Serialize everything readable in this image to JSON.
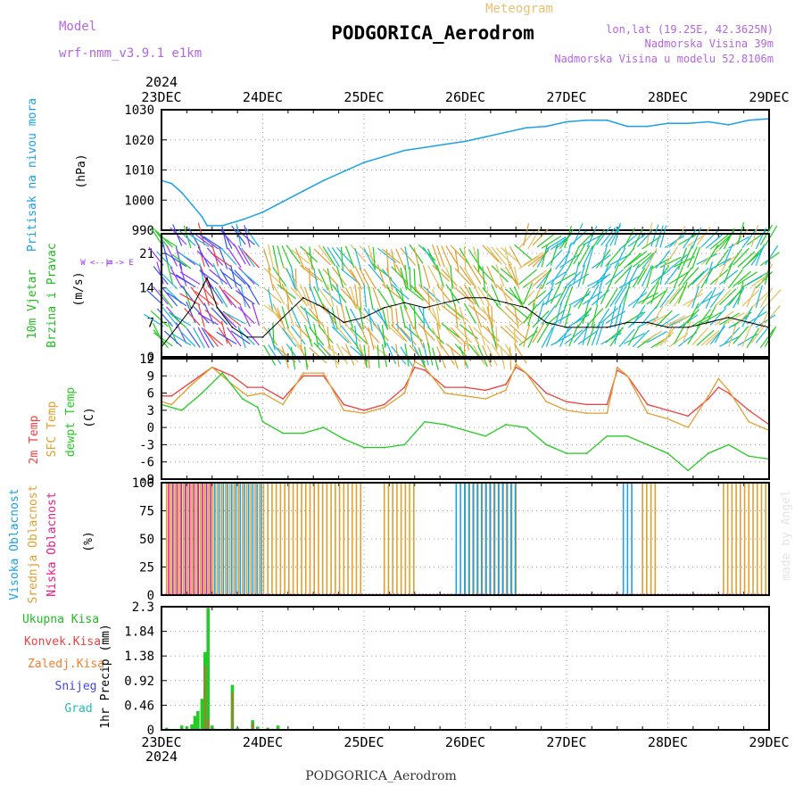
{
  "header": {
    "model_label": "Model",
    "model_name": "wrf-nmm_v3.9.1  e1km",
    "product": "Meteogram",
    "station": "PODGORICA_Aerodrom",
    "lonlat": "lon,lat (19.25E, 42.3625N)",
    "elevation": "Nadmorska Visina 39m",
    "model_elevation": "Nadmorska Visina u modelu 52.8106m"
  },
  "footer": {
    "station": "PODGORICA_Aerodrom",
    "credit": "made by Angel"
  },
  "time_axis": {
    "year_top": "2024",
    "year_bottom": "2024",
    "labels": [
      "23DEC",
      "24DEC",
      "25DEC",
      "26DEC",
      "27DEC",
      "28DEC",
      "29DEC"
    ]
  },
  "colors": {
    "pressure": "#1aa1e6",
    "temp2m": "#f04040",
    "sfc": "#e0a030",
    "dewpoint": "#22cc22",
    "high_cloud": "#1aa1e6",
    "mid_cloud": "#e0a030",
    "low_cloud": "#e0208a",
    "wind_label": "#22bb22",
    "direction_key": "#9933ff"
  },
  "chart_data": [
    {
      "type": "line",
      "ylabel": "Pritisak na nivou mora",
      "unit": "(hPa)",
      "ylim": [
        990,
        1030
      ],
      "yticks": [
        990,
        1000,
        1010,
        1020,
        1030
      ],
      "grid": true,
      "series": [
        {
          "x": [
            0,
            0.1,
            0.2,
            0.3,
            0.4,
            0.45,
            0.6,
            0.8,
            1.0,
            1.2,
            1.4,
            1.6,
            1.8,
            2.0,
            2.2,
            2.4,
            2.6,
            2.8,
            3.0,
            3.2,
            3.4,
            3.6,
            3.8,
            4.0,
            4.2,
            4.4,
            4.6,
            4.8,
            5.0,
            5.2,
            5.4,
            5.6,
            5.8,
            6.0
          ],
          "values": [
            1006.5,
            1005.5,
            1002.5,
            998.5,
            994.5,
            991.5,
            991.5,
            993.5,
            996,
            999.5,
            1003,
            1006.5,
            1009.5,
            1012.5,
            1014.5,
            1016.5,
            1017.5,
            1018.5,
            1019.5,
            1021,
            1022.5,
            1024,
            1024.5,
            1026,
            1026.5,
            1026.5,
            1024.5,
            1024.5,
            1025.5,
            1025.5,
            1026,
            1025,
            1026.5,
            1027
          ]
        }
      ]
    },
    {
      "type": "line",
      "ylabels": [
        "10m Vjetar",
        "Brzina i Pravac"
      ],
      "unit": "(m/s)",
      "direction_key": [
        "N",
        "W  <--|-->  E",
        "S"
      ],
      "ylim": [
        0,
        25
      ],
      "yticks": [
        0,
        7,
        14,
        21
      ],
      "grid": true,
      "series": [
        {
          "x": [
            0,
            0.15,
            0.3,
            0.45,
            0.55,
            0.7,
            0.85,
            1.0,
            1.2,
            1.4,
            1.6,
            1.8,
            2.0,
            2.2,
            2.4,
            2.6,
            2.8,
            3.0,
            3.2,
            3.4,
            3.6,
            3.8,
            4.0,
            4.2,
            4.4,
            4.6,
            4.8,
            5.0,
            5.2,
            5.4,
            5.6,
            5.8,
            6.0
          ],
          "values": [
            2,
            6,
            10,
            16,
            10,
            6,
            4,
            4,
            8,
            12,
            10,
            7,
            8,
            10,
            11,
            10,
            11,
            12,
            12,
            11,
            10,
            7,
            6,
            6,
            6,
            7,
            7,
            6,
            6,
            7,
            8,
            7,
            6
          ]
        }
      ]
    },
    {
      "type": "line",
      "ylabels": [
        "2m Temp",
        "SFC Temp",
        "dewpt Temp"
      ],
      "unit": "(C)",
      "ylim": [
        -9,
        12
      ],
      "yticks": [
        -9,
        -6,
        -3,
        0,
        3,
        6,
        9,
        12
      ],
      "grid": true,
      "series": [
        {
          "name": "2m Temp",
          "x": [
            0,
            0.1,
            0.3,
            0.5,
            0.7,
            0.85,
            1.0,
            1.2,
            1.4,
            1.6,
            1.8,
            2.0,
            2.2,
            2.4,
            2.5,
            2.6,
            2.8,
            3.0,
            3.2,
            3.4,
            3.5,
            3.6,
            3.8,
            4.0,
            4.2,
            4.4,
            4.5,
            4.6,
            4.8,
            5.0,
            5.2,
            5.4,
            5.5,
            5.6,
            5.8,
            6.0
          ],
          "values": [
            5.5,
            5.5,
            8,
            10.5,
            9,
            7,
            7,
            5,
            9,
            9,
            4,
            3,
            4,
            7,
            10.5,
            10,
            7,
            7,
            6.5,
            7.5,
            10.5,
            9.5,
            6,
            4.5,
            4,
            4,
            10,
            9,
            4,
            3,
            2,
            5,
            7,
            6,
            3,
            0.5
          ]
        },
        {
          "name": "SFC Temp",
          "x": [
            0,
            0.1,
            0.3,
            0.5,
            0.7,
            0.85,
            1.0,
            1.2,
            1.4,
            1.6,
            1.8,
            2.0,
            2.2,
            2.4,
            2.5,
            2.6,
            2.8,
            3.0,
            3.2,
            3.4,
            3.5,
            3.6,
            3.8,
            4.0,
            4.2,
            4.4,
            4.5,
            4.6,
            4.8,
            5.0,
            5.2,
            5.4,
            5.5,
            5.6,
            5.8,
            6.0
          ],
          "values": [
            4.5,
            4,
            7.5,
            10.5,
            7.5,
            5.5,
            6,
            4,
            9.5,
            9.5,
            3,
            2.5,
            3.5,
            6,
            11.5,
            10.5,
            6,
            5.5,
            5,
            6.5,
            11,
            9.5,
            4.5,
            3,
            2.5,
            2.5,
            10.5,
            9,
            2.5,
            1.5,
            0,
            5.5,
            8.5,
            6.5,
            1,
            -0.5
          ]
        },
        {
          "name": "dewpt Temp",
          "x": [
            0,
            0.2,
            0.4,
            0.6,
            0.8,
            0.95,
            1.0,
            1.2,
            1.4,
            1.6,
            1.8,
            2.0,
            2.2,
            2.4,
            2.6,
            2.8,
            3.0,
            3.2,
            3.4,
            3.6,
            3.8,
            4.0,
            4.2,
            4.4,
            4.6,
            4.8,
            5.0,
            5.2,
            5.4,
            5.6,
            5.8,
            6.0
          ],
          "values": [
            4,
            3,
            6,
            9.5,
            5,
            3.5,
            1,
            -1,
            -1,
            0,
            -2,
            -3.5,
            -3.5,
            -3,
            1,
            0.5,
            -0.5,
            -1.5,
            0.5,
            0,
            -3,
            -4.5,
            -4.5,
            -1.5,
            -1.5,
            -3,
            -4.5,
            -7.5,
            -4.5,
            -3,
            -5,
            -5.5
          ]
        }
      ]
    },
    {
      "type": "bar",
      "ylabels": [
        "Visoka Oblacnost",
        "Srednja Oblacnost",
        "Niska Oblacnost"
      ],
      "unit": "(%)",
      "ylim": [
        0,
        100
      ],
      "yticks": [
        0,
        25,
        50,
        75,
        100
      ],
      "grid": true,
      "series": [
        {
          "name": "Srednja Oblacnost",
          "segments": [
            [
              0.05,
              2.0,
              100
            ],
            [
              2.2,
              2.5,
              100
            ],
            [
              3.0,
              3.5,
              100
            ],
            [
              4.75,
              4.9,
              100
            ],
            [
              5.55,
              6.0,
              100
            ]
          ]
        },
        {
          "name": "Visoka Oblacnost",
          "segments": [
            [
              0.1,
              1.0,
              100
            ],
            [
              2.9,
              3.5,
              100
            ],
            [
              4.55,
              4.65,
              100
            ]
          ]
        },
        {
          "name": "Niska Oblacnost",
          "segments": [
            [
              0.05,
              0.5,
              100
            ]
          ]
        }
      ]
    },
    {
      "type": "bar",
      "ylabels": [
        "Ukupna Kisa",
        "Konvek.Kisa",
        "Zaledj.Kisa",
        "Snijeg",
        "Grad"
      ],
      "unit": "1hr Precip (mm)",
      "ylim": [
        0,
        2.3
      ],
      "yticks": [
        0,
        0.46,
        0.92,
        1.38,
        1.84,
        2.3
      ],
      "grid": true,
      "series": [
        {
          "name": "Ukupna Kisa",
          "x": [
            0.05,
            0.2,
            0.25,
            0.3,
            0.33,
            0.36,
            0.4,
            0.43,
            0.46,
            0.5,
            0.53,
            0.65,
            0.7,
            0.75,
            0.85,
            0.9,
            0.95,
            1.05,
            1.1,
            1.15
          ],
          "values": [
            0.04,
            0.08,
            0.06,
            0.1,
            0.26,
            0.35,
            0.58,
            1.45,
            2.28,
            0.08,
            0.02,
            0.02,
            0.84,
            0.04,
            0.02,
            0.18,
            0.06,
            0.04,
            0.02,
            0.08
          ]
        },
        {
          "name": "Konvek.Kisa",
          "x": [
            0.43,
            0.46,
            0.7,
            0.9
          ],
          "values": [
            1.2,
            0.2,
            0.7,
            0.12
          ]
        }
      ]
    }
  ]
}
